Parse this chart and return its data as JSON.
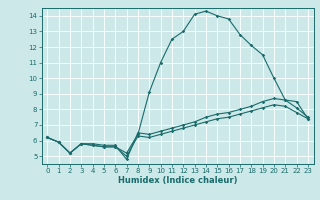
{
  "xlabel": "Humidex (Indice chaleur)",
  "ylabel": "",
  "background_color": "#cce8e8",
  "grid_color": "#ffffff",
  "line_color": "#1a6b6b",
  "xlim": [
    -0.5,
    23.5
  ],
  "ylim": [
    4.5,
    14.5
  ],
  "xticks": [
    0,
    1,
    2,
    3,
    4,
    5,
    6,
    7,
    8,
    9,
    10,
    11,
    12,
    13,
    14,
    15,
    16,
    17,
    18,
    19,
    20,
    21,
    22,
    23
  ],
  "yticks": [
    5,
    6,
    7,
    8,
    9,
    10,
    11,
    12,
    13,
    14
  ],
  "line1_x": [
    0,
    1,
    2,
    3,
    4,
    5,
    6,
    7,
    8,
    9,
    10,
    11,
    12,
    13,
    14,
    15,
    16,
    17,
    18,
    19,
    20,
    21,
    22,
    23
  ],
  "line1_y": [
    6.2,
    5.9,
    5.2,
    5.8,
    5.7,
    5.6,
    5.6,
    5.2,
    6.4,
    9.1,
    11.0,
    12.5,
    13.0,
    14.1,
    14.3,
    14.0,
    13.8,
    12.8,
    12.1,
    11.5,
    10.0,
    8.6,
    8.5,
    7.4
  ],
  "line2_x": [
    0,
    1,
    2,
    3,
    4,
    5,
    6,
    7,
    8,
    9,
    10,
    11,
    12,
    13,
    14,
    15,
    16,
    17,
    18,
    19,
    20,
    21,
    22,
    23
  ],
  "line2_y": [
    6.2,
    5.9,
    5.2,
    5.8,
    5.8,
    5.7,
    5.7,
    4.8,
    6.5,
    6.4,
    6.6,
    6.8,
    7.0,
    7.2,
    7.5,
    7.7,
    7.8,
    8.0,
    8.2,
    8.5,
    8.7,
    8.6,
    8.1,
    7.5
  ],
  "line3_x": [
    0,
    1,
    2,
    3,
    4,
    5,
    6,
    7,
    8,
    9,
    10,
    11,
    12,
    13,
    14,
    15,
    16,
    17,
    18,
    19,
    20,
    21,
    22,
    23
  ],
  "line3_y": [
    6.2,
    5.9,
    5.2,
    5.8,
    5.7,
    5.6,
    5.6,
    5.0,
    6.3,
    6.2,
    6.4,
    6.6,
    6.8,
    7.0,
    7.2,
    7.4,
    7.5,
    7.7,
    7.9,
    8.1,
    8.3,
    8.2,
    7.8,
    7.4
  ],
  "tick_fontsize": 5.0,
  "xlabel_fontsize": 6.0
}
